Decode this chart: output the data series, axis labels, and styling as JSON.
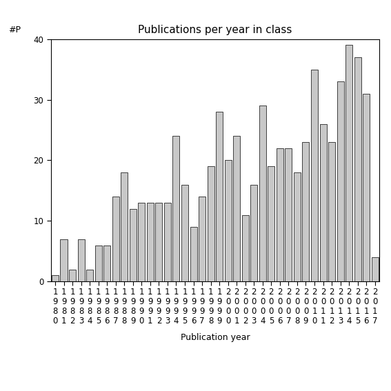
{
  "title": "Publications per year in class",
  "xlabel": "Publication year",
  "ylabel": "#P",
  "years": [
    "1980",
    "1981",
    "1982",
    "1983",
    "1984",
    "1985",
    "1986",
    "1987",
    "1988",
    "1989",
    "1990",
    "1991",
    "1992",
    "1993",
    "1994",
    "1995",
    "1996",
    "1997",
    "1998",
    "1999",
    "2000",
    "2001",
    "2002",
    "2003",
    "2004",
    "2005",
    "2006",
    "2007",
    "2008",
    "2009",
    "2010",
    "2011",
    "2012",
    "2013",
    "2014",
    "2015",
    "2016",
    "2017"
  ],
  "values": [
    1,
    7,
    2,
    7,
    2,
    6,
    6,
    14,
    18,
    12,
    13,
    13,
    13,
    13,
    24,
    16,
    9,
    14,
    19,
    28,
    20,
    24,
    11,
    16,
    29,
    19,
    22,
    22,
    18,
    23,
    35,
    26,
    23,
    33,
    39,
    37,
    31,
    4
  ],
  "bar_color": "#c8c8c8",
  "bar_edge_color": "#000000",
  "ylim": [
    0,
    40
  ],
  "yticks": [
    0,
    10,
    20,
    30,
    40
  ],
  "background_color": "#ffffff",
  "title_fontsize": 11,
  "label_fontsize": 9,
  "tick_fontsize": 8.5
}
